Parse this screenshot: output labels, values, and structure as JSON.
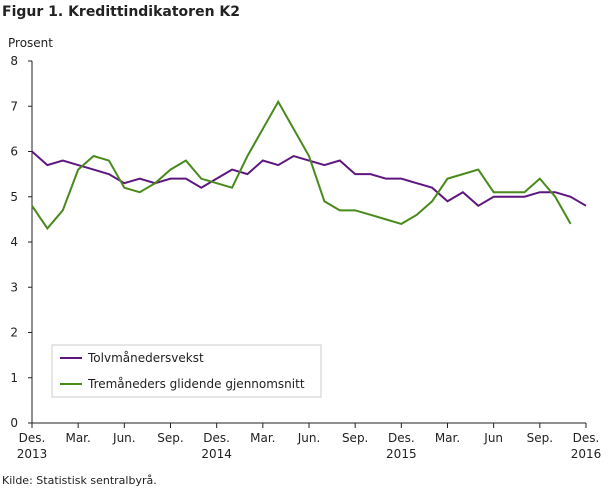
{
  "chart_data": {
    "type": "line",
    "title": "Figur 1. Kredittindikatoren K2",
    "y_label": "Prosent",
    "source": "Kilde: Statistisk sentralbyrå.",
    "categories": [
      "Des.\n2013",
      null,
      null,
      "Mar.",
      null,
      null,
      "Jun.",
      null,
      null,
      "Sep.",
      null,
      null,
      "Des.\n2014",
      null,
      null,
      "Mar.",
      null,
      null,
      "Jun.",
      null,
      null,
      "Sep.",
      null,
      null,
      "Des.\n2015",
      null,
      null,
      "Mar.",
      null,
      null,
      "Jun",
      null,
      null,
      "Sep.",
      null,
      null,
      "Des.\n2016"
    ],
    "series": [
      {
        "name": "Tolvmånedersvekst",
        "color": "#5e1780",
        "values": [
          6.0,
          5.7,
          5.8,
          5.7,
          5.6,
          5.5,
          5.3,
          5.4,
          5.3,
          5.4,
          5.4,
          5.2,
          5.4,
          5.6,
          5.5,
          5.8,
          5.7,
          5.9,
          5.8,
          5.7,
          5.8,
          5.5,
          5.5,
          5.4,
          5.4,
          5.3,
          5.2,
          4.9,
          5.1,
          4.8,
          5.0,
          5.0,
          5.0,
          5.1,
          5.1,
          5.0,
          4.8
        ]
      },
      {
        "name": "Tremåneders glidende gjennomsnitt",
        "color": "#4a8a1c",
        "values": [
          4.8,
          4.3,
          4.7,
          5.6,
          5.9,
          5.8,
          5.2,
          5.1,
          5.3,
          5.6,
          5.8,
          5.4,
          5.3,
          5.2,
          5.9,
          6.5,
          7.1,
          6.5,
          5.9,
          4.9,
          4.7,
          4.7,
          4.6,
          4.5,
          4.4,
          4.6,
          4.9,
          5.4,
          5.5,
          5.6,
          5.1,
          5.1,
          5.1,
          5.4,
          5.0,
          4.4,
          null
        ]
      }
    ],
    "ylim": [
      0,
      8
    ],
    "yticks": [
      0,
      1,
      2,
      3,
      4,
      5,
      6,
      7,
      8
    ],
    "grid": false
  }
}
